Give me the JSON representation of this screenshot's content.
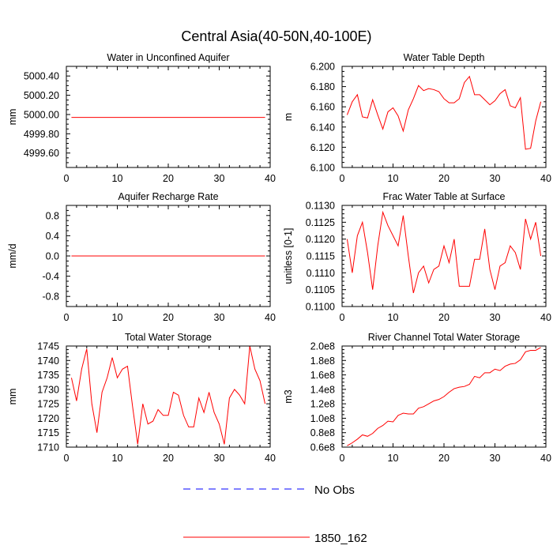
{
  "figure_title": "Central Asia(40-50N,40-100E)",
  "colors": {
    "model": "#ff0000",
    "obs": "#0000ff",
    "axis": "#000000"
  },
  "legend": [
    {
      "label": "No Obs",
      "style": "dashed",
      "color": "#0000ff"
    },
    {
      "label": "1850_162",
      "style": "solid",
      "color": "#ff0000"
    }
  ],
  "chart_data": [
    {
      "type": "line",
      "title": "Water in Unconfined Aquifer",
      "ylabel": "mm",
      "xlim": [
        0,
        40
      ],
      "ylim": [
        4999.45,
        5000.5
      ],
      "xticks": [
        0,
        10,
        20,
        30,
        40
      ],
      "yticks": [
        4999.6,
        4999.8,
        5000.0,
        5000.2,
        5000.4
      ],
      "ytick_labels": [
        "4999.60",
        "4999.80",
        "5000.00",
        "5000.20",
        "5000.40"
      ],
      "series": [
        {
          "name": "1850_162",
          "x": [
            1,
            39
          ],
          "values": [
            4999.97,
            4999.97
          ]
        }
      ]
    },
    {
      "type": "line",
      "title": "Water Table Depth",
      "ylabel": "m",
      "xlim": [
        0,
        40
      ],
      "ylim": [
        6.1,
        6.2
      ],
      "xticks": [
        0,
        10,
        20,
        30,
        40
      ],
      "yticks": [
        6.1,
        6.12,
        6.14,
        6.16,
        6.18,
        6.2
      ],
      "ytick_labels": [
        "6.100",
        "6.120",
        "6.140",
        "6.160",
        "6.180",
        "6.200"
      ],
      "series": [
        {
          "name": "1850_162",
          "x": [
            1,
            2,
            3,
            4,
            5,
            6,
            7,
            8,
            9,
            10,
            11,
            12,
            13,
            14,
            15,
            16,
            17,
            18,
            19,
            20,
            21,
            22,
            23,
            24,
            25,
            26,
            27,
            28,
            29,
            30,
            31,
            32,
            33,
            34,
            35,
            36,
            37,
            38,
            39
          ],
          "values": [
            6.152,
            6.165,
            6.172,
            6.15,
            6.149,
            6.167,
            6.152,
            6.138,
            6.155,
            6.159,
            6.151,
            6.136,
            6.157,
            6.168,
            6.181,
            6.176,
            6.178,
            6.177,
            6.175,
            6.168,
            6.164,
            6.164,
            6.168,
            6.184,
            6.19,
            6.172,
            6.172,
            6.167,
            6.162,
            6.166,
            6.173,
            6.177,
            6.161,
            6.159,
            6.169,
            6.118,
            6.119,
            6.146,
            6.165
          ]
        }
      ]
    },
    {
      "type": "line",
      "title": "Aquifer Recharge Rate",
      "ylabel": "mm/d",
      "xlim": [
        0,
        40
      ],
      "ylim": [
        -1.0,
        1.0
      ],
      "xticks": [
        0,
        10,
        20,
        30,
        40
      ],
      "yticks": [
        -0.8,
        -0.4,
        0.0,
        0.4,
        0.8
      ],
      "ytick_labels": [
        "-0.8",
        "-0.4",
        "0.0",
        "0.4",
        "0.8"
      ],
      "series": [
        {
          "name": "1850_162",
          "x": [
            1,
            39
          ],
          "values": [
            0.0,
            0.0
          ]
        }
      ]
    },
    {
      "type": "line",
      "title": "Frac Water Table at Surface",
      "ylabel": "unitless [0-1]",
      "xlim": [
        0,
        40
      ],
      "ylim": [
        0.11,
        0.113
      ],
      "xticks": [
        0,
        10,
        20,
        30,
        40
      ],
      "yticks": [
        0.11,
        0.1105,
        0.111,
        0.1115,
        0.112,
        0.1125,
        0.113
      ],
      "ytick_labels": [
        "0.1100",
        "0.1105",
        "0.1110",
        "0.1115",
        "0.1120",
        "0.1125",
        "0.1130"
      ],
      "series": [
        {
          "name": "1850_162",
          "x": [
            1,
            2,
            3,
            4,
            5,
            6,
            7,
            8,
            9,
            10,
            11,
            12,
            13,
            14,
            15,
            16,
            17,
            18,
            19,
            20,
            21,
            22,
            23,
            24,
            25,
            26,
            27,
            28,
            29,
            30,
            31,
            32,
            33,
            34,
            35,
            36,
            37,
            38,
            39
          ],
          "values": [
            0.112,
            0.111,
            0.1121,
            0.1125,
            0.1116,
            0.1105,
            0.1118,
            0.1128,
            0.1124,
            0.1121,
            0.1118,
            0.1127,
            0.1115,
            0.1104,
            0.111,
            0.1112,
            0.1107,
            0.1111,
            0.1112,
            0.1118,
            0.1113,
            0.112,
            0.1106,
            0.1106,
            0.1106,
            0.1114,
            0.1114,
            0.1123,
            0.1111,
            0.1105,
            0.1112,
            0.1113,
            0.1118,
            0.1116,
            0.1111,
            0.1126,
            0.112,
            0.1125,
            0.1115
          ]
        }
      ]
    },
    {
      "type": "line",
      "title": "Total Water Storage",
      "ylabel": "mm",
      "xlim": [
        0,
        40
      ],
      "ylim": [
        1710,
        1745
      ],
      "xticks": [
        0,
        10,
        20,
        30,
        40
      ],
      "yticks": [
        1710,
        1715,
        1720,
        1725,
        1730,
        1735,
        1740,
        1745
      ],
      "ytick_labels": [
        "1710",
        "1715",
        "1720",
        "1725",
        "1730",
        "1735",
        "1740",
        "1745"
      ],
      "series": [
        {
          "name": "1850_162",
          "x": [
            1,
            2,
            3,
            4,
            5,
            6,
            7,
            8,
            9,
            10,
            11,
            12,
            13,
            14,
            15,
            16,
            17,
            18,
            19,
            20,
            21,
            22,
            23,
            24,
            25,
            26,
            27,
            28,
            29,
            30,
            31,
            32,
            33,
            34,
            35,
            36,
            37,
            38,
            39
          ],
          "values": [
            1734,
            1726,
            1737,
            1744,
            1725,
            1715,
            1729,
            1734,
            1741,
            1734,
            1737,
            1738,
            1724,
            1711,
            1725,
            1718,
            1719,
            1723,
            1721,
            1721,
            1729,
            1728,
            1721,
            1717,
            1717,
            1727,
            1722,
            1729,
            1722,
            1718,
            1711,
            1727,
            1730,
            1728,
            1725,
            1745,
            1737,
            1733,
            1725
          ]
        }
      ]
    },
    {
      "type": "line",
      "title": "River Channel Total Water Storage",
      "ylabel": "m3",
      "xlim": [
        0,
        40
      ],
      "ylim": [
        60000000,
        200000000
      ],
      "xticks": [
        0,
        10,
        20,
        30,
        40
      ],
      "yticks": [
        60000000,
        80000000,
        100000000,
        120000000,
        140000000,
        160000000,
        180000000,
        200000000
      ],
      "ytick_labels": [
        "0.6e8",
        "0.8e8",
        "1.0e8",
        "1.2e8",
        "1.4e8",
        "1.6e8",
        "1.8e8",
        "2.0e8"
      ],
      "series": [
        {
          "name": "1850_162",
          "x": [
            1,
            2,
            3,
            4,
            5,
            6,
            7,
            8,
            9,
            10,
            11,
            12,
            13,
            14,
            15,
            16,
            17,
            18,
            19,
            20,
            21,
            22,
            23,
            24,
            25,
            26,
            27,
            28,
            29,
            30,
            31,
            32,
            33,
            34,
            35,
            36,
            37,
            38,
            39
          ],
          "values": [
            62000000,
            66000000,
            71000000,
            77000000,
            75000000,
            79000000,
            86000000,
            90000000,
            96000000,
            95000000,
            104000000,
            107000000,
            106000000,
            106000000,
            114000000,
            116000000,
            120000000,
            124000000,
            126000000,
            130000000,
            136000000,
            141000000,
            143000000,
            144000000,
            147000000,
            158000000,
            156000000,
            163000000,
            163000000,
            168000000,
            166000000,
            172000000,
            175000000,
            176000000,
            181000000,
            192000000,
            194000000,
            194000000,
            198000000
          ]
        }
      ]
    }
  ]
}
